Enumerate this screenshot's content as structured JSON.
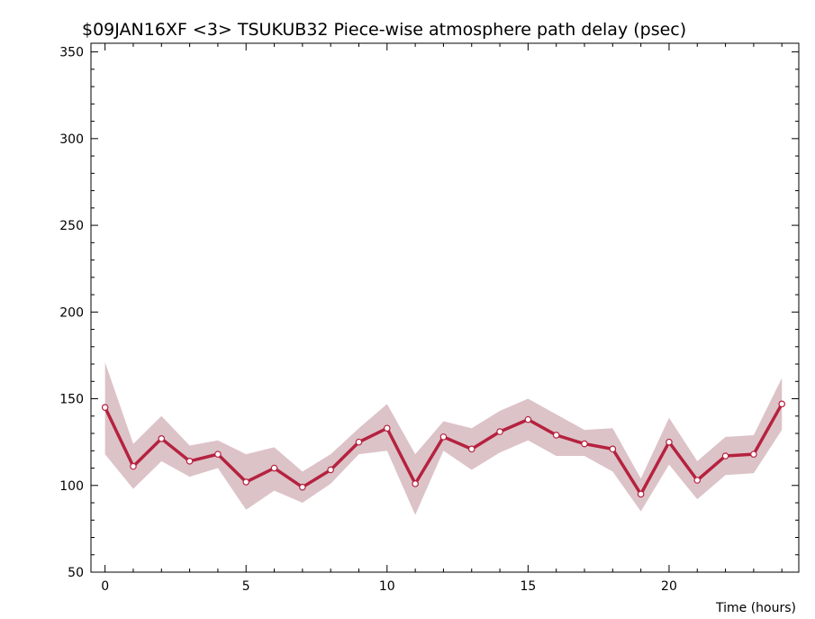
{
  "chart_data": {
    "type": "line",
    "title": "$09JAN16XF <3>  TSUKUB32  Piece-wise atmosphere path delay (psec)",
    "xlabel": "Time (hours)",
    "ylabel": "",
    "xlim": [
      -0.5,
      24.6
    ],
    "ylim": [
      50,
      355
    ],
    "x_ticks": [
      0,
      5,
      10,
      15,
      20
    ],
    "y_ticks": [
      50,
      100,
      150,
      200,
      250,
      300,
      350
    ],
    "grid": false,
    "colors": {
      "line": "#b5223f",
      "band": "#dcc3c8",
      "marker_fill": "#ffffff",
      "axis": "#000000"
    },
    "series": [
      {
        "x": [
          0,
          1,
          2,
          3,
          4,
          5,
          6,
          7,
          8,
          9,
          10,
          11,
          12,
          13,
          14,
          15,
          16,
          17,
          18,
          19,
          20,
          21,
          22,
          23,
          24
        ],
        "values": [
          145,
          111,
          127,
          114,
          118,
          102,
          110,
          99,
          109,
          125,
          133,
          101,
          128,
          121,
          131,
          138,
          129,
          124,
          121,
          95,
          125,
          103,
          117,
          118,
          147
        ],
        "upper": [
          171,
          124,
          140,
          123,
          126,
          118,
          122,
          108,
          118,
          133,
          147,
          118,
          137,
          133,
          143,
          150,
          141,
          132,
          133,
          104,
          139,
          114,
          128,
          129,
          162
        ],
        "lower": [
          118,
          98,
          114,
          105,
          110,
          86,
          97,
          90,
          101,
          118,
          120,
          83,
          120,
          109,
          119,
          126,
          117,
          117,
          108,
          85,
          112,
          92,
          106,
          107,
          132
        ]
      }
    ]
  }
}
